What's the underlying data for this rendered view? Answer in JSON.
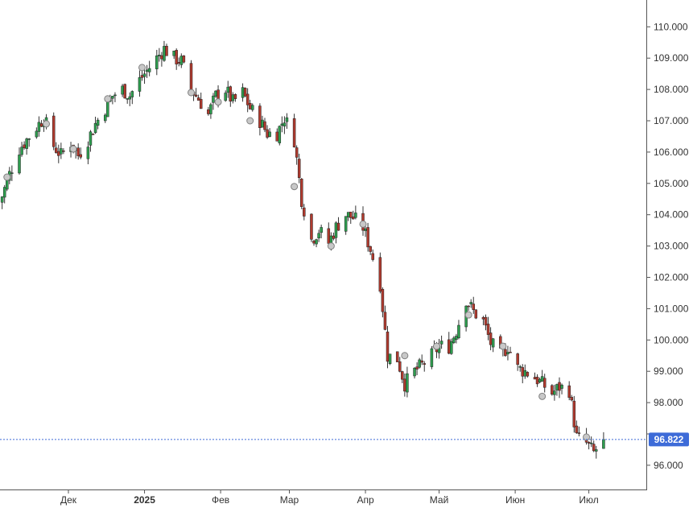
{
  "chart_data": {
    "type": "candlestick",
    "y_axis": {
      "position": "right",
      "ylim": [
        95.4,
        110.4
      ],
      "ticks": [
        96,
        97,
        98,
        99,
        100,
        101,
        102,
        103,
        104,
        105,
        106,
        107,
        108,
        109,
        110
      ],
      "tick_labels": [
        "96.000",
        "",
        "98.000",
        "99.000",
        "100.000",
        "101.000",
        "102.000",
        "103.000",
        "104.000",
        "105.000",
        "106.000",
        "107.000",
        "108.000",
        "109.000",
        "110.000"
      ]
    },
    "x_axis": {
      "ticks": [
        {
          "label": "Дек",
          "date": "2024-12-01",
          "bold": false
        },
        {
          "label": "2025",
          "date": "2025-01-01",
          "bold": true
        },
        {
          "label": "Фев",
          "date": "2025-02-01",
          "bold": false
        },
        {
          "label": "Мар",
          "date": "2025-03-01",
          "bold": false
        },
        {
          "label": "Апр",
          "date": "2025-04-01",
          "bold": false
        },
        {
          "label": "Май",
          "date": "2025-05-01",
          "bold": false
        },
        {
          "label": "Июн",
          "date": "2025-06-01",
          "bold": false
        },
        {
          "label": "Июл",
          "date": "2025-07-01",
          "bold": false
        }
      ]
    },
    "last_price": {
      "value": 96.822,
      "label": "96.822"
    },
    "colors": {
      "up": "#2e9e4f",
      "down": "#b03a2e",
      "wick": "#333333",
      "last_line": "#3d6bd8",
      "last_label_bg": "#3d6bd8",
      "marker_fill": "#c8c8c8",
      "marker_stroke": "#808080"
    },
    "series": {
      "close_path": [
        [
          "2024-11-01",
          104.4
        ],
        [
          "2024-11-04",
          104.6
        ],
        [
          "2024-11-07",
          105.3
        ],
        [
          "2024-11-11",
          106.1
        ],
        [
          "2024-11-14",
          106.4
        ],
        [
          "2024-11-18",
          106.8
        ],
        [
          "2024-11-21",
          107.1
        ],
        [
          "2024-11-25",
          106.2
        ],
        [
          "2024-11-28",
          105.9
        ],
        [
          "2024-12-02",
          106.3
        ],
        [
          "2024-12-05",
          105.9
        ],
        [
          "2024-12-09",
          106.4
        ],
        [
          "2024-12-12",
          106.9
        ],
        [
          "2024-12-16",
          107.4
        ],
        [
          "2024-12-19",
          107.8
        ],
        [
          "2024-12-23",
          108.0
        ],
        [
          "2024-12-26",
          107.8
        ],
        [
          "2024-12-30",
          108.3
        ],
        [
          "2025-01-02",
          108.6
        ],
        [
          "2025-01-06",
          109.0
        ],
        [
          "2025-01-09",
          109.3
        ],
        [
          "2025-01-13",
          109.0
        ],
        [
          "2025-01-16",
          108.9
        ],
        [
          "2025-01-20",
          108.0
        ],
        [
          "2025-01-23",
          107.7
        ],
        [
          "2025-01-27",
          107.2
        ],
        [
          "2025-01-30",
          107.8
        ],
        [
          "2025-02-03",
          108.0
        ],
        [
          "2025-02-06",
          107.6
        ],
        [
          "2025-02-10",
          107.9
        ],
        [
          "2025-02-13",
          107.4
        ],
        [
          "2025-02-17",
          107.0
        ],
        [
          "2025-02-20",
          106.6
        ],
        [
          "2025-02-24",
          106.6
        ],
        [
          "2025-02-27",
          107.1
        ],
        [
          "2025-03-03",
          106.4
        ],
        [
          "2025-03-06",
          104.5
        ],
        [
          "2025-03-10",
          103.2
        ],
        [
          "2025-03-13",
          103.5
        ],
        [
          "2025-03-17",
          103.1
        ],
        [
          "2025-03-20",
          103.6
        ],
        [
          "2025-03-24",
          104.0
        ],
        [
          "2025-03-27",
          103.9
        ],
        [
          "2025-03-31",
          103.6
        ],
        [
          "2025-04-03",
          102.9
        ],
        [
          "2025-04-07",
          101.8
        ],
        [
          "2025-04-10",
          99.5
        ],
        [
          "2025-04-14",
          99.4
        ],
        [
          "2025-04-17",
          98.6
        ],
        [
          "2025-04-21",
          99.0
        ],
        [
          "2025-04-24",
          99.2
        ],
        [
          "2025-04-28",
          99.5
        ],
        [
          "2025-05-01",
          99.8
        ],
        [
          "2025-05-05",
          99.8
        ],
        [
          "2025-05-08",
          100.3
        ],
        [
          "2025-05-12",
          101.3
        ],
        [
          "2025-05-15",
          100.9
        ],
        [
          "2025-05-19",
          100.6
        ],
        [
          "2025-05-22",
          99.9
        ],
        [
          "2025-05-26",
          99.5
        ],
        [
          "2025-05-29",
          99.8
        ],
        [
          "2025-06-02",
          99.1
        ],
        [
          "2025-06-05",
          99.0
        ],
        [
          "2025-06-09",
          98.8
        ],
        [
          "2025-06-12",
          98.6
        ],
        [
          "2025-06-16",
          98.3
        ],
        [
          "2025-06-19",
          98.5
        ],
        [
          "2025-06-23",
          98.4
        ],
        [
          "2025-06-26",
          96.9
        ],
        [
          "2025-06-30",
          96.7
        ],
        [
          "2025-07-03",
          96.4
        ],
        [
          "2025-07-07",
          96.822
        ]
      ],
      "markers": [
        [
          "2024-11-06",
          105.2
        ],
        [
          "2024-11-22",
          106.9
        ],
        [
          "2024-12-03",
          106.1
        ],
        [
          "2024-12-17",
          107.7
        ],
        [
          "2024-12-31",
          108.7
        ],
        [
          "2025-01-20",
          107.9
        ],
        [
          "2025-01-31",
          107.6
        ],
        [
          "2025-02-13",
          107.0
        ],
        [
          "2025-03-03",
          104.9
        ],
        [
          "2025-03-18",
          103.0
        ],
        [
          "2025-03-31",
          103.7
        ],
        [
          "2025-04-17",
          99.5
        ],
        [
          "2025-04-30",
          99.8
        ],
        [
          "2025-05-13",
          100.8
        ],
        [
          "2025-05-27",
          99.8
        ],
        [
          "2025-06-12",
          98.2
        ],
        [
          "2025-06-30",
          96.9
        ]
      ]
    }
  }
}
